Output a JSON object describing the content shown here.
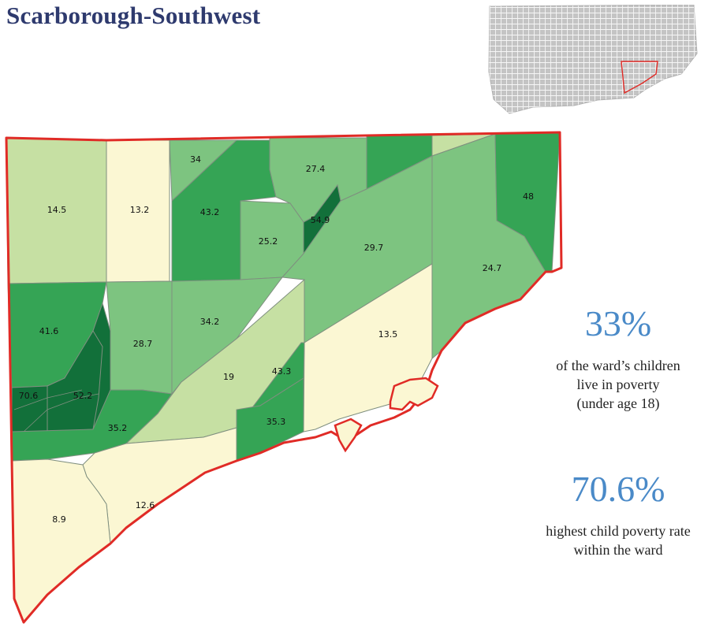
{
  "title": "Scarborough-Southwest",
  "colors": {
    "title": "#2e3a6e",
    "accent": "#4a8ac8",
    "boundary": "#e02b26",
    "class_0_15": "#fbf7d3",
    "class_15_25": "#c6e0a3",
    "class_25_33": "#7dc480",
    "class_33_50": "#35a455",
    "class_50_plus": "#12703a"
  },
  "map_labels": [
    "14.5",
    "13.2",
    "34",
    "43.2",
    "27.4",
    "25.2",
    "54.9",
    "48",
    "29.7",
    "24.7",
    "41.6",
    "28.7",
    "34.2",
    "13.5",
    "19",
    "43.3",
    "70.6",
    "52.2",
    "35.2",
    "35.3",
    "12.6",
    "8.9"
  ],
  "stats": [
    {
      "value": "33%",
      "caption": [
        "of the ward’s children",
        "live in poverty",
        "(under age 18)"
      ]
    },
    {
      "value": "70.6%",
      "caption": [
        "highest child poverty rate",
        "within the ward"
      ]
    }
  ]
}
